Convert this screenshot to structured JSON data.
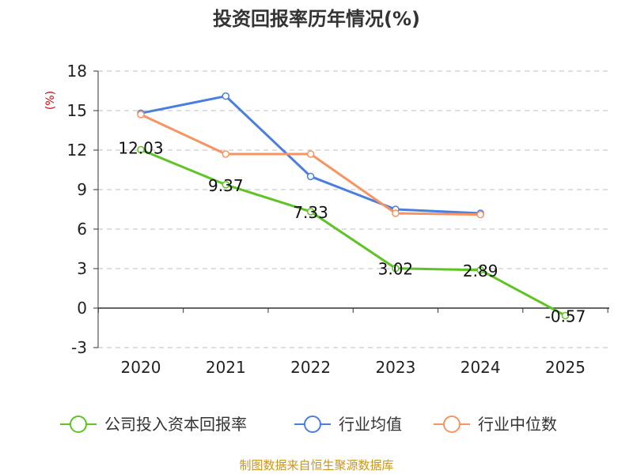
{
  "chart_data": {
    "type": "line",
    "title": "投资回报率历年情况(%)",
    "ylabel": "(%)",
    "xlabel": "",
    "categories": [
      "2020",
      "2021",
      "2022",
      "2023",
      "2024",
      "2025"
    ],
    "ylim": [
      -3,
      18
    ],
    "yticks": [
      -3,
      0,
      3,
      6,
      9,
      12,
      15,
      18
    ],
    "grid": true,
    "legend_position": "bottom",
    "series": [
      {
        "name": "公司投入资本回报率",
        "color": "#5ec424",
        "values": [
          12.03,
          9.37,
          7.33,
          3.02,
          2.89,
          -0.57
        ],
        "show_labels": true
      },
      {
        "name": "行业均值",
        "color": "#4a7fe0",
        "values": [
          14.8,
          16.1,
          10.0,
          7.5,
          7.2,
          null
        ],
        "show_labels": false
      },
      {
        "name": "行业中位数",
        "color": "#f79461",
        "values": [
          14.7,
          11.7,
          11.7,
          7.2,
          7.1,
          null
        ],
        "show_labels": false
      }
    ]
  },
  "footer": {
    "source": "制图数据来自恒生聚源数据库"
  }
}
